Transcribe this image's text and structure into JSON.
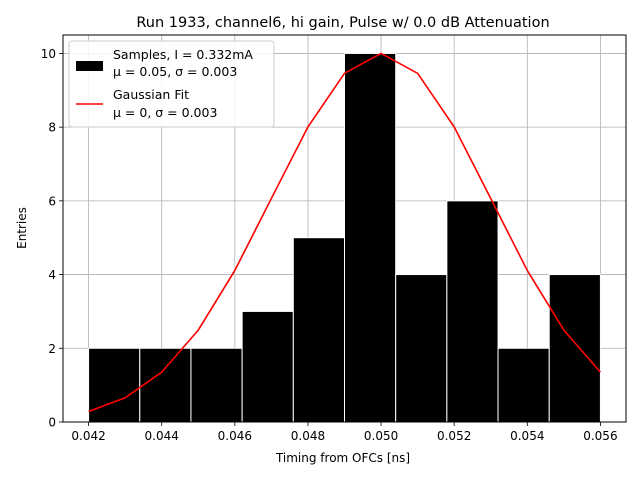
{
  "chart_data": {
    "type": "bar",
    "title": "Run 1933, channel6, hi gain, Pulse w/ 0.0 dB Attenuation",
    "xlabel": "Timing from OFCs [ns]",
    "ylabel": "Entries",
    "xlim": [
      0.0413,
      0.0567
    ],
    "ylim": [
      0,
      10.5
    ],
    "x_ticks": [
      "0.042",
      "0.044",
      "0.046",
      "0.048",
      "0.050",
      "0.052",
      "0.054",
      "0.056"
    ],
    "x_tick_values": [
      0.042,
      0.044,
      0.046,
      0.048,
      0.05,
      0.052,
      0.054,
      0.056
    ],
    "y_ticks": [
      "0",
      "2",
      "4",
      "6",
      "8",
      "10"
    ],
    "y_tick_values": [
      0,
      2,
      4,
      6,
      8,
      10
    ],
    "grid": true,
    "legend_position": "top-left",
    "bin_edges": [
      0.042,
      0.0434,
      0.0448,
      0.0462,
      0.0476,
      0.049,
      0.0504,
      0.0518,
      0.0532,
      0.0546,
      0.056
    ],
    "values": [
      2,
      2,
      2,
      3,
      5,
      10,
      4,
      6,
      2,
      4
    ],
    "series": [
      {
        "name": "Samples, I = 0.332mA",
        "name_line2": "μ = 0.05, σ = 0.003",
        "type": "histogram",
        "color": "#000000"
      },
      {
        "name": "Gaussian Fit",
        "name_line2": "μ = 0, σ = 0.003",
        "type": "line",
        "color": "#ff0000",
        "mean": 0.05,
        "sigma": 0.003,
        "amplitude": 10,
        "x_range": [
          0.042,
          0.056
        ]
      }
    ]
  }
}
